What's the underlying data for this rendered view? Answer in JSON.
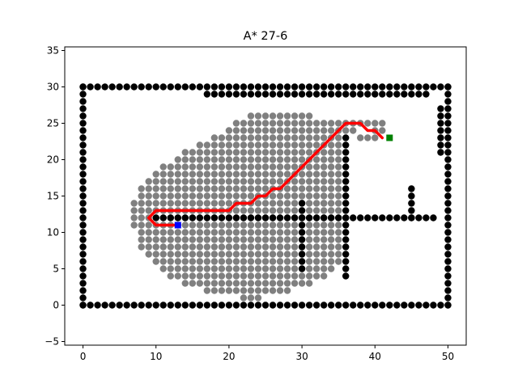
{
  "chart_data": {
    "type": "scatter",
    "title": "A* 27-6",
    "xlabel": "",
    "ylabel": "",
    "xlim": [
      -2.5,
      52.5
    ],
    "ylim": [
      -5.5,
      35.5
    ],
    "xticks": [
      0,
      10,
      20,
      30,
      40,
      50
    ],
    "yticks": [
      -5,
      0,
      5,
      10,
      15,
      20,
      25,
      30,
      35
    ],
    "grid": false,
    "colors": {
      "explored": "#808080",
      "obstacle": "#000000",
      "path": "#ff0000",
      "start": "#0000ff",
      "goal": "#008000"
    },
    "start": [
      13,
      11
    ],
    "goal": [
      42,
      23
    ],
    "explored_rows": [
      {
        "y": 1,
        "x": [
          22,
          24
        ]
      },
      {
        "y": 2,
        "x": [
          17,
          28
        ]
      },
      {
        "y": 3,
        "x": [
          14,
          31
        ]
      },
      {
        "y": 4,
        "x": [
          12,
          33
        ]
      },
      {
        "y": 5,
        "x": [
          11,
          34
        ]
      },
      {
        "y": 6,
        "x": [
          10,
          35
        ]
      },
      {
        "y": 7,
        "x": [
          9,
          35
        ]
      },
      {
        "y": 8,
        "x": [
          8,
          35
        ]
      },
      {
        "y": 9,
        "x": [
          8,
          35
        ]
      },
      {
        "y": 10,
        "x": [
          8,
          35
        ]
      },
      {
        "y": 11,
        "x": [
          7,
          35
        ]
      },
      {
        "y": 12,
        "x": [
          7,
          35
        ]
      },
      {
        "y": 13,
        "x": [
          7,
          35
        ]
      },
      {
        "y": 14,
        "x": [
          7,
          35
        ]
      },
      {
        "y": 15,
        "x": [
          8,
          35
        ]
      },
      {
        "y": 16,
        "x": [
          8,
          35
        ]
      },
      {
        "y": 17,
        "x": [
          9,
          35
        ]
      },
      {
        "y": 18,
        "x": [
          10,
          35
        ]
      },
      {
        "y": 19,
        "x": [
          11,
          35
        ]
      },
      {
        "y": 20,
        "x": [
          13,
          35
        ]
      },
      {
        "y": 21,
        "x": [
          14,
          35
        ]
      },
      {
        "y": 22,
        "x": [
          16,
          35
        ]
      },
      {
        "y": 23,
        "x": [
          18,
          35
        ]
      },
      {
        "y": 24,
        "x": [
          20,
          37
        ]
      },
      {
        "y": 25,
        "x": [
          21,
          41
        ]
      },
      {
        "y": 26,
        "x": [
          23,
          31
        ]
      }
    ],
    "explored_extra": [
      [
        38,
        23
      ],
      [
        39,
        23
      ],
      [
        40,
        23
      ],
      [
        40,
        24
      ],
      [
        41,
        24
      ],
      [
        33,
        14
      ]
    ],
    "obstacle_rows": [
      {
        "y": 0,
        "x": [
          0,
          50
        ]
      },
      {
        "y": 30,
        "x": [
          0,
          50
        ]
      },
      {
        "y": 29,
        "x": [
          17,
          47
        ]
      },
      {
        "y": 12,
        "x": [
          10,
          48
        ]
      }
    ],
    "obstacle_cols": [
      {
        "x": 0,
        "y": [
          0,
          30
        ]
      },
      {
        "x": 50,
        "y": [
          0,
          30
        ]
      },
      {
        "x": 30,
        "y": [
          5,
          14
        ]
      },
      {
        "x": 36,
        "y": [
          4,
          23
        ]
      },
      {
        "x": 45,
        "y": [
          12,
          16
        ]
      },
      {
        "x": 49,
        "y": [
          21,
          27
        ]
      }
    ],
    "path": [
      [
        13,
        11
      ],
      [
        12,
        11
      ],
      [
        11,
        11
      ],
      [
        10,
        11
      ],
      [
        9,
        12
      ],
      [
        10,
        13
      ],
      [
        11,
        13
      ],
      [
        12,
        13
      ],
      [
        13,
        13
      ],
      [
        14,
        13
      ],
      [
        15,
        13
      ],
      [
        16,
        13
      ],
      [
        17,
        13
      ],
      [
        18,
        13
      ],
      [
        19,
        13
      ],
      [
        20,
        13
      ],
      [
        21,
        14
      ],
      [
        22,
        14
      ],
      [
        23,
        14
      ],
      [
        24,
        15
      ],
      [
        25,
        15
      ],
      [
        26,
        16
      ],
      [
        27,
        16
      ],
      [
        28,
        17
      ],
      [
        29,
        18
      ],
      [
        30,
        19
      ],
      [
        31,
        20
      ],
      [
        32,
        21
      ],
      [
        33,
        22
      ],
      [
        34,
        23
      ],
      [
        35,
        24
      ],
      [
        36,
        25
      ],
      [
        37,
        25
      ],
      [
        38,
        25
      ],
      [
        39,
        24
      ],
      [
        40,
        24
      ],
      [
        41,
        23
      ]
    ]
  }
}
